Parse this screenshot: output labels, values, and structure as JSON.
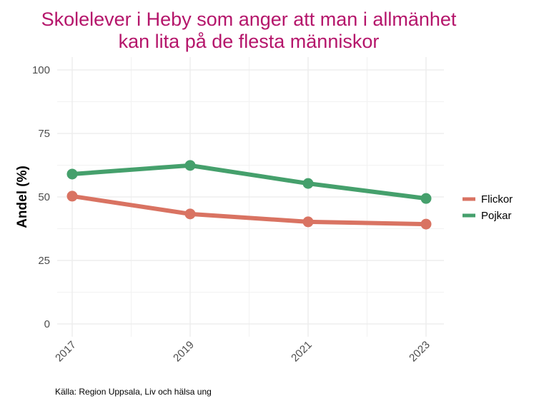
{
  "chart_data": {
    "type": "line",
    "title_lines": [
      "Skolelever i Heby som anger att man i allmänhet",
      "kan lita på de flesta människor"
    ],
    "xlabel": "",
    "ylabel": "Andel (%)",
    "x": [
      2017,
      2019,
      2021,
      2023
    ],
    "x_tick_labels": [
      "2017",
      "2019",
      "2021",
      "2023"
    ],
    "ylim": [
      0,
      100
    ],
    "xlim": [
      2016.8,
      2023.3
    ],
    "y_ticks": [
      0,
      25,
      50,
      75,
      100
    ],
    "y_tick_labels": [
      "0",
      "25",
      "50",
      "75",
      "100"
    ],
    "grid": true,
    "legend_position": "right",
    "series": [
      {
        "name": "Flickor",
        "color": "#D97362",
        "values": [
          50.3,
          43.3,
          40.2,
          39.3
        ]
      },
      {
        "name": "Pojkar",
        "color": "#45A06C",
        "values": [
          59.0,
          62.4,
          55.3,
          49.4
        ]
      }
    ],
    "caption": "Källa: Region Uppsala, Liv och hälsa ung"
  }
}
